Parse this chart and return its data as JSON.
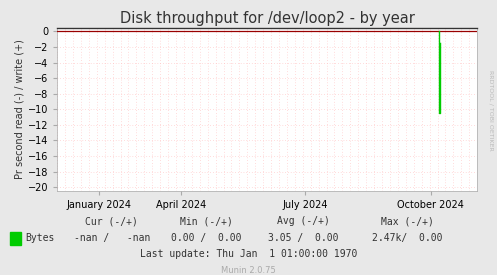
{
  "title": "Disk throughput for /dev/loop2 - by year",
  "ylabel": "Pr second read (-) / write (+)",
  "background_color": "#e8e8e8",
  "plot_background_color": "#ffffff",
  "xlim_start": 1704067200,
  "xlim_end": 1730678400,
  "ylim": [
    -20.5,
    0.5
  ],
  "yticks": [
    0.0,
    -2.0,
    -4.0,
    -6.0,
    -8.0,
    -10.0,
    -12.0,
    -14.0,
    -16.0,
    -18.0,
    -20.0
  ],
  "x_labels": [
    {
      "label": "January 2024",
      "ts": 1706745600
    },
    {
      "label": "April 2024",
      "ts": 1711929600
    },
    {
      "label": "July 2024",
      "ts": 1719792000
    },
    {
      "label": "October 2024",
      "ts": 1727740800
    }
  ],
  "line_color": "#00cc00",
  "line_x": [
    1728259200,
    1728259200,
    1728345600,
    1728345600
  ],
  "line_y": [
    0.0,
    -10.5,
    -10.5,
    -1.5
  ],
  "zero_line_color": "#990000",
  "right_text": "RRDTOOL / TOBI OETIKER",
  "legend_label": "Bytes",
  "legend_color": "#00cc00",
  "footer_cur": "Cur (-/+)",
  "footer_cur_val": "-nan /   -nan",
  "footer_min": "Min (-/+)",
  "footer_min_val": "0.00 /  0.00",
  "footer_avg": "Avg (-/+)",
  "footer_avg_val": "3.05 /  0.00",
  "footer_max": "Max (-/+)",
  "footer_max_val": "2.47k/  0.00",
  "footer_lastupdate": "Last update: Thu Jan  1 01:00:00 1970",
  "munin_version": "Munin 2.0.75",
  "title_fontsize": 10.5,
  "axis_fontsize": 7,
  "ylabel_fontsize": 7,
  "footer_fontsize": 7,
  "munin_fontsize": 6
}
